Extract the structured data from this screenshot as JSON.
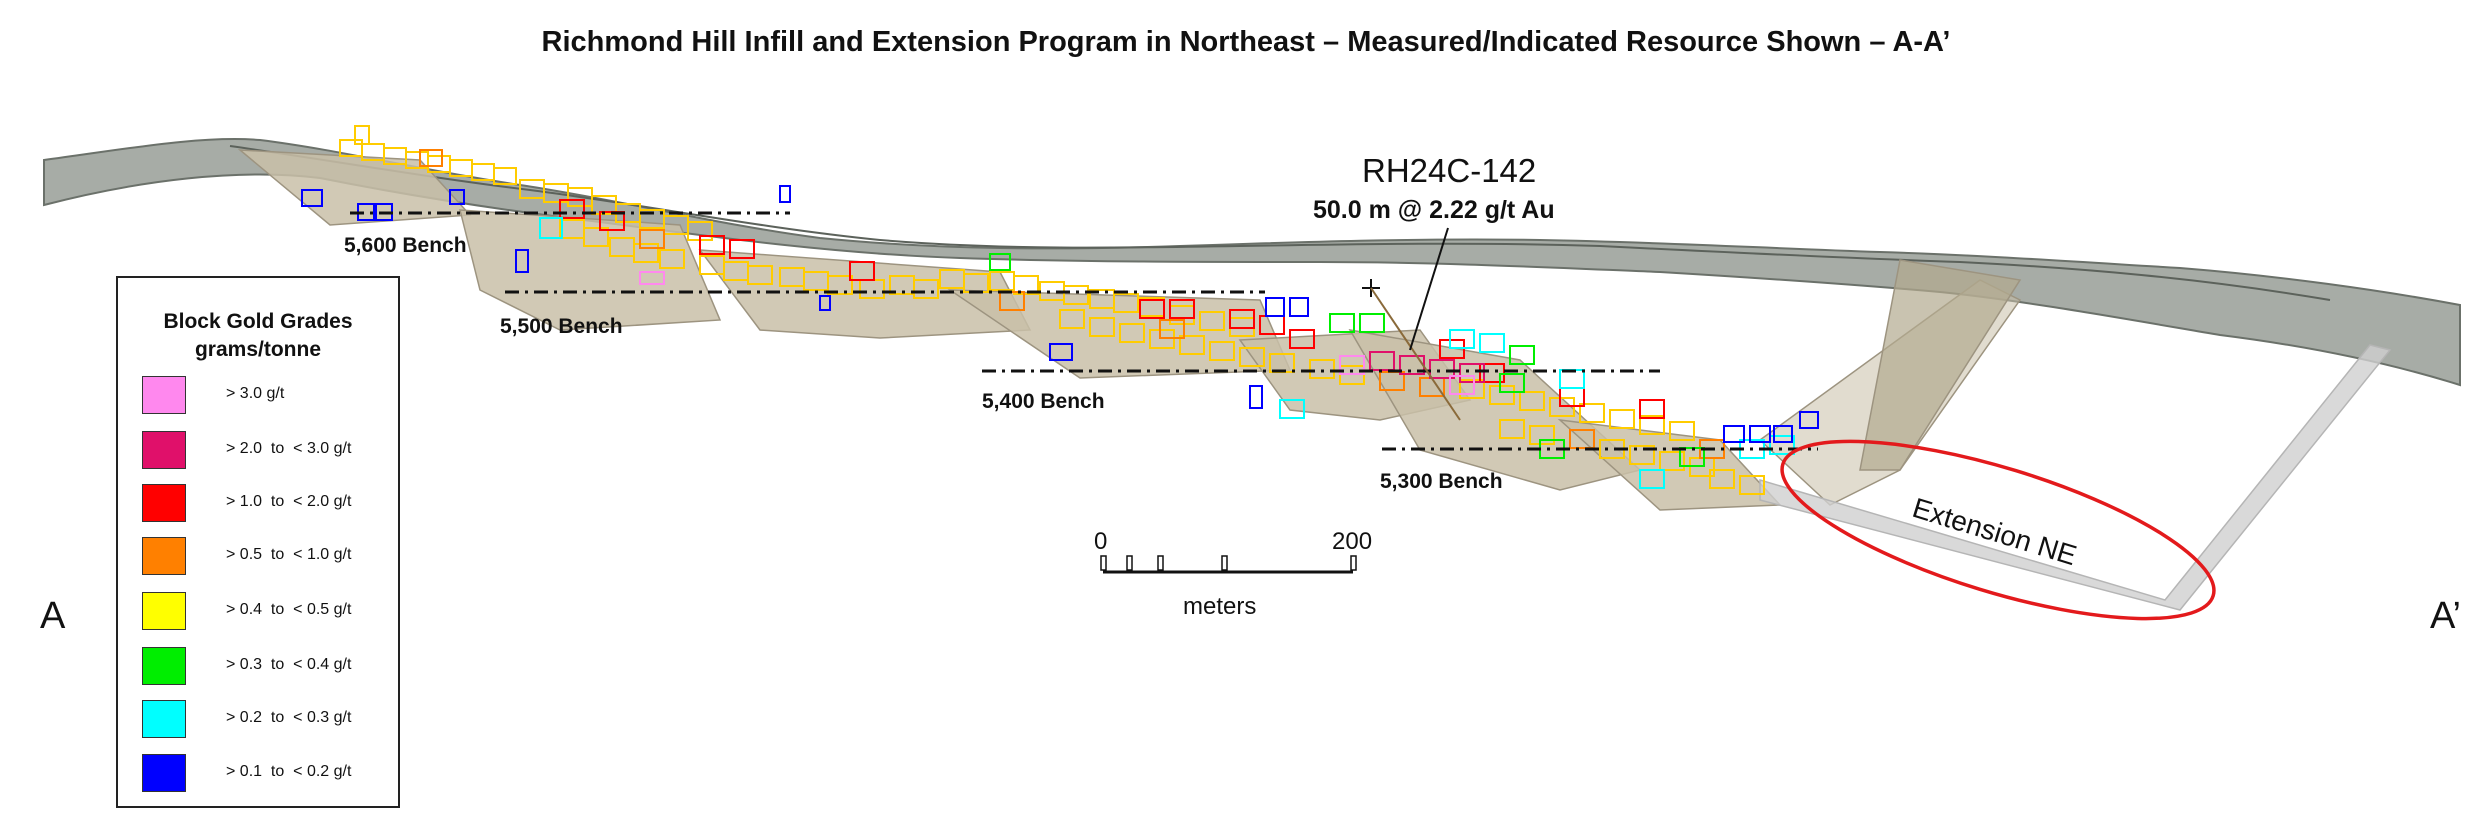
{
  "title": "Richmond Hill Infill and Extension Program in Northeast – Measured/Indicated Resource Shown – A-A’",
  "section": {
    "left_label": "A",
    "right_label": "A’"
  },
  "benches": [
    "5,600 Bench",
    "5,500 Bench",
    "5,400 Bench",
    "5,300 Bench"
  ],
  "drill_hole": {
    "id": "RH24C-142",
    "intercept": "50.0 m @ 2.22 g/t Au"
  },
  "extension_label": "Extension NE",
  "scale_bar": {
    "start": "0",
    "end": "200",
    "unit": "meters"
  },
  "legend": {
    "title_line1": "Block Gold Grades",
    "title_line2": "grams/tonne",
    "items": [
      {
        "label": "> 3.0 g/t",
        "color": "#ff88ee"
      },
      {
        "label": "> 2.0  to  < 3.0 g/t",
        "color": "#e0106a"
      },
      {
        "label": "> 1.0  to  < 2.0 g/t",
        "color": "#ff0000"
      },
      {
        "label": "> 0.5  to  < 1.0 g/t",
        "color": "#ff8000"
      },
      {
        "label": "> 0.4  to  < 0.5 g/t",
        "color": "#ffff00"
      },
      {
        "label": "> 0.3  to  < 0.4 g/t",
        "color": "#00ee00"
      },
      {
        "label": "> 0.2  to  < 0.3 g/t",
        "color": "#00ffff"
      },
      {
        "label": "> 0.1  to  < 0.2 g/t",
        "color": "#0000ff"
      }
    ]
  },
  "colors": {
    "topography": "#8a9088",
    "pit_fill": "#c9bfa8",
    "extension_ellipse": "#e31a1c",
    "bench_line": "#111111"
  }
}
